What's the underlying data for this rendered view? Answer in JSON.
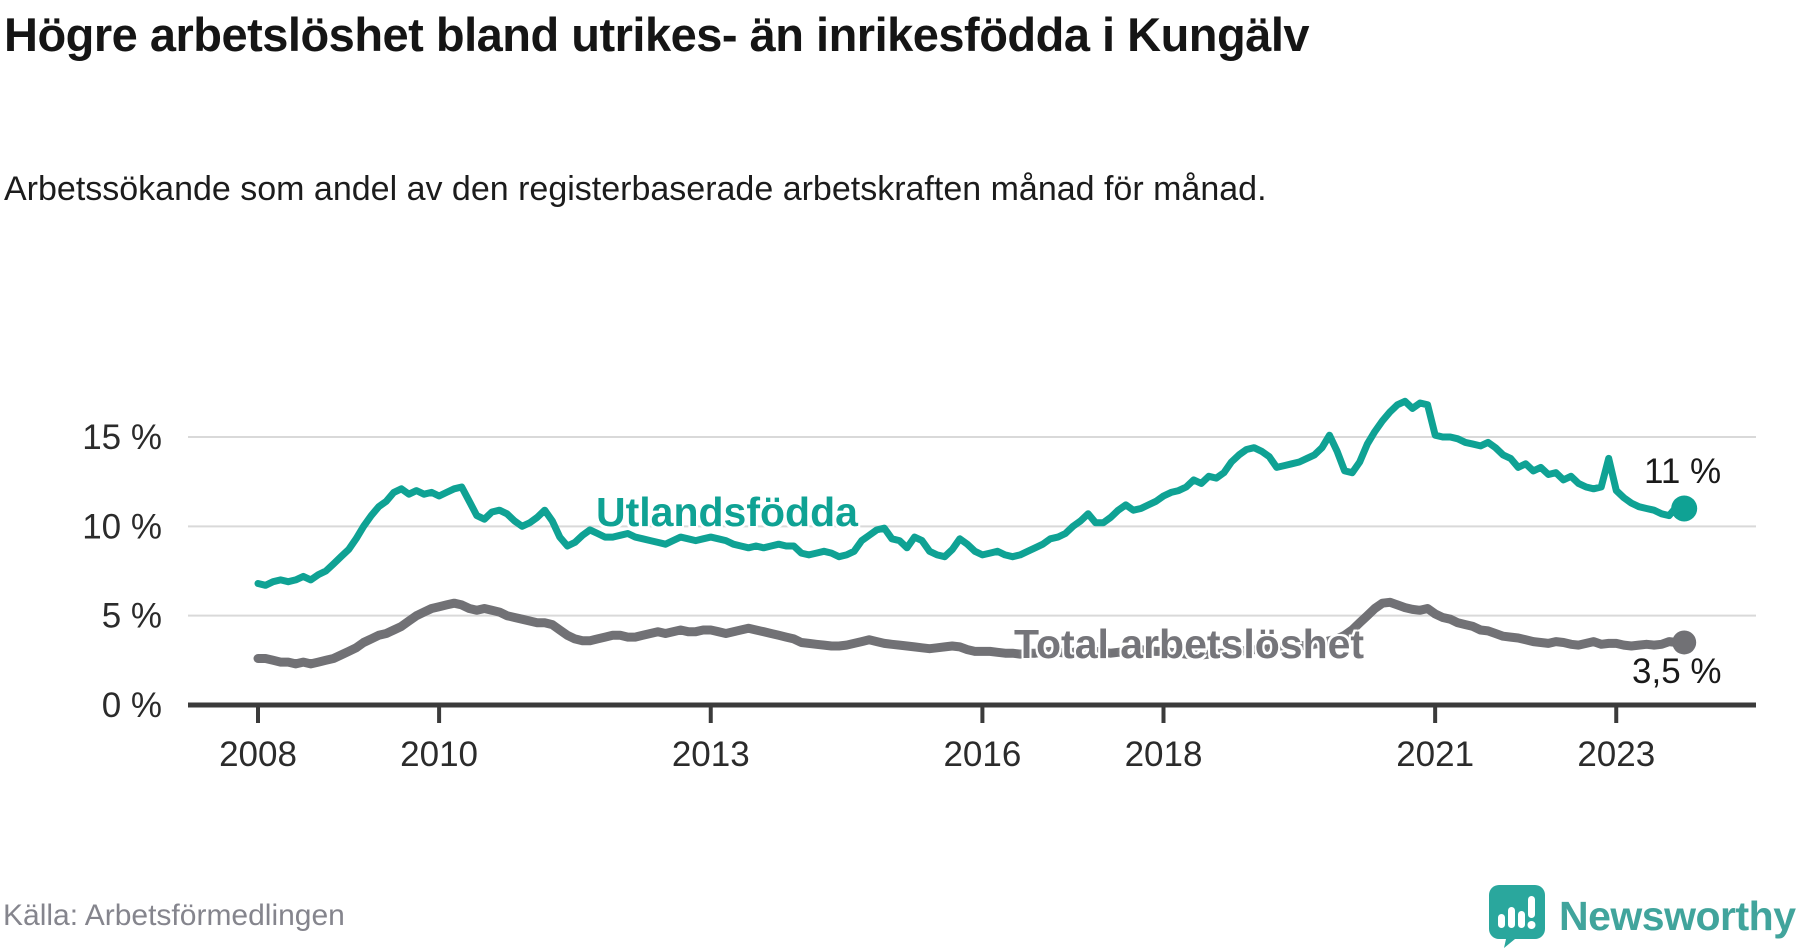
{
  "header": {
    "title": "Högre arbetslöshet bland utrikes- än inrikesfödda i Kungälv",
    "subtitle": "Arbetssökande som andel av den registerbaserade arbetskraften månad för månad."
  },
  "footer": {
    "source": "Källa: Arbetsförmedlingen",
    "brand": "Newsworthy"
  },
  "colors": {
    "title_text": "#151515",
    "axis": "#3b3b3b",
    "gridline": "#d9d9d9",
    "tick_label": "#2b2b2b",
    "value_label": "#1a1a1a",
    "source_text": "#85858d",
    "series_foreign": "#0fa294",
    "series_total": "#717175",
    "series_total_label": "#75757a",
    "logo_icon": "#2aa79d",
    "logo_text": "#41a49c"
  },
  "chart_data": {
    "type": "line",
    "frequency": "monthly",
    "x_start": "2008-01",
    "x_end": "2023-10",
    "grid": "horizontal-only",
    "legend_position": "inline-labels",
    "ylim": [
      0,
      17.5
    ],
    "y_ticks": [
      {
        "value": 0,
        "label": "0 %"
      },
      {
        "value": 5,
        "label": "5 %"
      },
      {
        "value": 10,
        "label": "10 %"
      },
      {
        "value": 15,
        "label": "15 %"
      }
    ],
    "x_ticks": [
      {
        "year": 2008,
        "label": "2008"
      },
      {
        "year": 2010,
        "label": "2010"
      },
      {
        "year": 2013,
        "label": "2013"
      },
      {
        "year": 2016,
        "label": "2016"
      },
      {
        "year": 2018,
        "label": "2018"
      },
      {
        "year": 2021,
        "label": "2021"
      },
      {
        "year": 2023,
        "label": "2023"
      }
    ],
    "series": [
      {
        "name": "Utlandsfödda",
        "color": "#0fa294",
        "line_width": 7,
        "end_label": "11 %",
        "end_value": 11.0,
        "values": [
          6.8,
          6.7,
          6.9,
          7.0,
          6.9,
          7.0,
          7.2,
          7.0,
          7.3,
          7.5,
          7.9,
          8.3,
          8.7,
          9.3,
          10.0,
          10.6,
          11.1,
          11.4,
          11.9,
          12.1,
          11.8,
          12.0,
          11.8,
          11.9,
          11.7,
          11.9,
          12.1,
          12.2,
          11.4,
          10.6,
          10.4,
          10.8,
          10.9,
          10.7,
          10.3,
          10.0,
          10.2,
          10.5,
          10.9,
          10.3,
          9.4,
          8.9,
          9.1,
          9.5,
          9.8,
          9.6,
          9.4,
          9.4,
          9.5,
          9.6,
          9.4,
          9.3,
          9.2,
          9.1,
          9.0,
          9.2,
          9.4,
          9.3,
          9.2,
          9.3,
          9.4,
          9.3,
          9.2,
          9.0,
          8.9,
          8.8,
          8.9,
          8.8,
          8.9,
          9.0,
          8.9,
          8.9,
          8.5,
          8.4,
          8.5,
          8.6,
          8.5,
          8.3,
          8.4,
          8.6,
          9.2,
          9.5,
          9.8,
          9.9,
          9.3,
          9.2,
          8.8,
          9.4,
          9.2,
          8.6,
          8.4,
          8.3,
          8.7,
          9.3,
          9.0,
          8.6,
          8.4,
          8.5,
          8.6,
          8.4,
          8.3,
          8.4,
          8.6,
          8.8,
          9.0,
          9.3,
          9.4,
          9.6,
          10.0,
          10.3,
          10.7,
          10.2,
          10.2,
          10.5,
          10.9,
          11.2,
          10.9,
          11.0,
          11.2,
          11.4,
          11.7,
          11.9,
          12.0,
          12.2,
          12.6,
          12.4,
          12.8,
          12.7,
          13.0,
          13.6,
          14.0,
          14.3,
          14.4,
          14.2,
          13.9,
          13.3,
          13.4,
          13.5,
          13.6,
          13.8,
          14.0,
          14.4,
          15.1,
          14.2,
          13.1,
          13.0,
          13.6,
          14.6,
          15.3,
          15.9,
          16.4,
          16.8,
          17.0,
          16.6,
          16.9,
          16.8,
          15.1,
          15.0,
          15.0,
          14.9,
          14.7,
          14.6,
          14.5,
          14.7,
          14.4,
          14.0,
          13.8,
          13.3,
          13.5,
          13.1,
          13.3,
          12.9,
          13.0,
          12.6,
          12.8,
          12.4,
          12.2,
          12.1,
          12.2,
          13.8,
          12.0,
          11.6,
          11.3,
          11.1,
          11.0,
          10.9,
          10.7,
          10.6,
          11.1,
          11.0
        ]
      },
      {
        "name": "Total arbetslöshet",
        "color": "#717175",
        "line_width": 9,
        "end_label": "3,5 %",
        "end_value": 3.5,
        "values": [
          2.6,
          2.6,
          2.5,
          2.4,
          2.4,
          2.3,
          2.4,
          2.3,
          2.4,
          2.5,
          2.6,
          2.8,
          3.0,
          3.2,
          3.5,
          3.7,
          3.9,
          4.0,
          4.2,
          4.4,
          4.7,
          5.0,
          5.2,
          5.4,
          5.5,
          5.6,
          5.7,
          5.6,
          5.4,
          5.3,
          5.4,
          5.3,
          5.2,
          5.0,
          4.9,
          4.8,
          4.7,
          4.6,
          4.6,
          4.5,
          4.2,
          3.9,
          3.7,
          3.6,
          3.6,
          3.7,
          3.8,
          3.9,
          3.9,
          3.8,
          3.8,
          3.9,
          4.0,
          4.1,
          4.0,
          4.1,
          4.2,
          4.1,
          4.1,
          4.2,
          4.2,
          4.1,
          4.0,
          4.1,
          4.2,
          4.3,
          4.2,
          4.1,
          4.0,
          3.9,
          3.8,
          3.7,
          3.5,
          3.45,
          3.4,
          3.35,
          3.3,
          3.3,
          3.35,
          3.45,
          3.55,
          3.65,
          3.55,
          3.45,
          3.4,
          3.35,
          3.3,
          3.25,
          3.2,
          3.15,
          3.2,
          3.25,
          3.3,
          3.25,
          3.1,
          3.0,
          3.0,
          3.0,
          2.95,
          2.9,
          2.9,
          2.85,
          2.9,
          2.9,
          2.95,
          3.0,
          2.95,
          2.9,
          2.95,
          3.0,
          3.05,
          3.0,
          2.95,
          2.9,
          2.95,
          3.0,
          3.05,
          3.1,
          3.05,
          3.0,
          3.0,
          2.95,
          2.9,
          2.85,
          2.8,
          2.8,
          2.85,
          2.9,
          2.9,
          2.95,
          3.0,
          3.05,
          3.1,
          3.1,
          3.15,
          3.2,
          3.2,
          3.25,
          3.3,
          3.35,
          3.4,
          3.5,
          3.6,
          3.7,
          3.9,
          4.2,
          4.6,
          5.0,
          5.4,
          5.7,
          5.75,
          5.6,
          5.45,
          5.35,
          5.3,
          5.4,
          5.1,
          4.9,
          4.8,
          4.6,
          4.5,
          4.4,
          4.2,
          4.15,
          4.0,
          3.85,
          3.8,
          3.75,
          3.65,
          3.55,
          3.5,
          3.45,
          3.55,
          3.5,
          3.4,
          3.35,
          3.45,
          3.55,
          3.4,
          3.45,
          3.45,
          3.35,
          3.3,
          3.35,
          3.4,
          3.35,
          3.4,
          3.55,
          3.5,
          3.5
        ]
      }
    ]
  }
}
